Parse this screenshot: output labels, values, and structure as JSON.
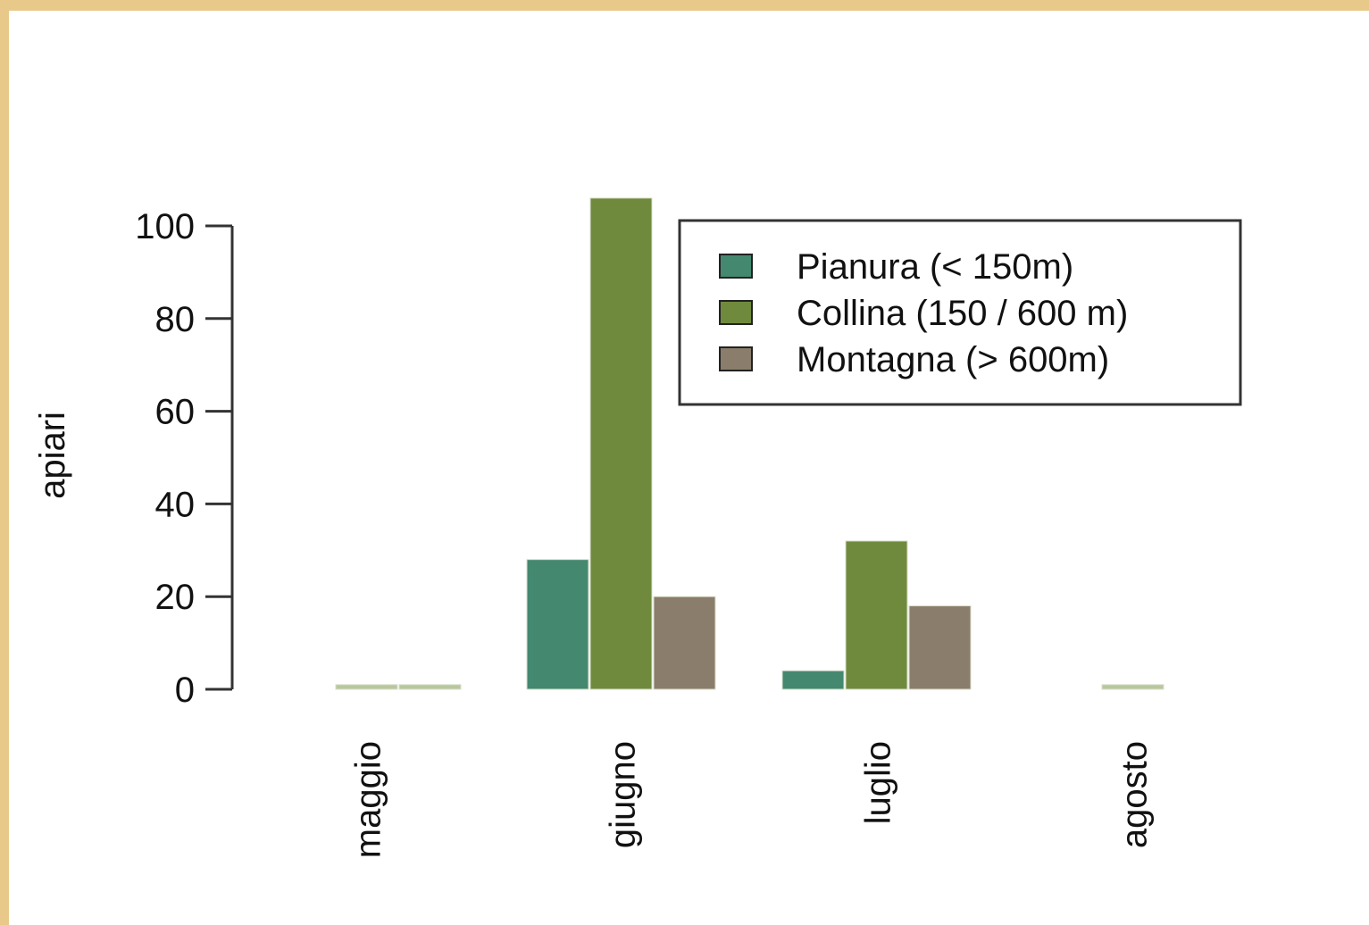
{
  "chart_data": {
    "type": "bar",
    "ylabel": "apiari",
    "xlabel": "",
    "ylim": [
      0,
      100
    ],
    "yticks": [
      0,
      20,
      40,
      60,
      80,
      100
    ],
    "categories": [
      "maggio",
      "giugno",
      "luglio",
      "agosto"
    ],
    "series": [
      {
        "name": "Pianura (< 150m)",
        "color": "#448870",
        "values": [
          0,
          28,
          4,
          0
        ]
      },
      {
        "name": "Collina (150 / 600 m)",
        "color": "#6f8a3c",
        "values": [
          1,
          106,
          32,
          1
        ]
      },
      {
        "name": "Montagna (> 600m)",
        "color": "#8a7d6b",
        "values": [
          1,
          20,
          18,
          0
        ]
      }
    ],
    "legend_position": "top-right",
    "grid": false
  }
}
